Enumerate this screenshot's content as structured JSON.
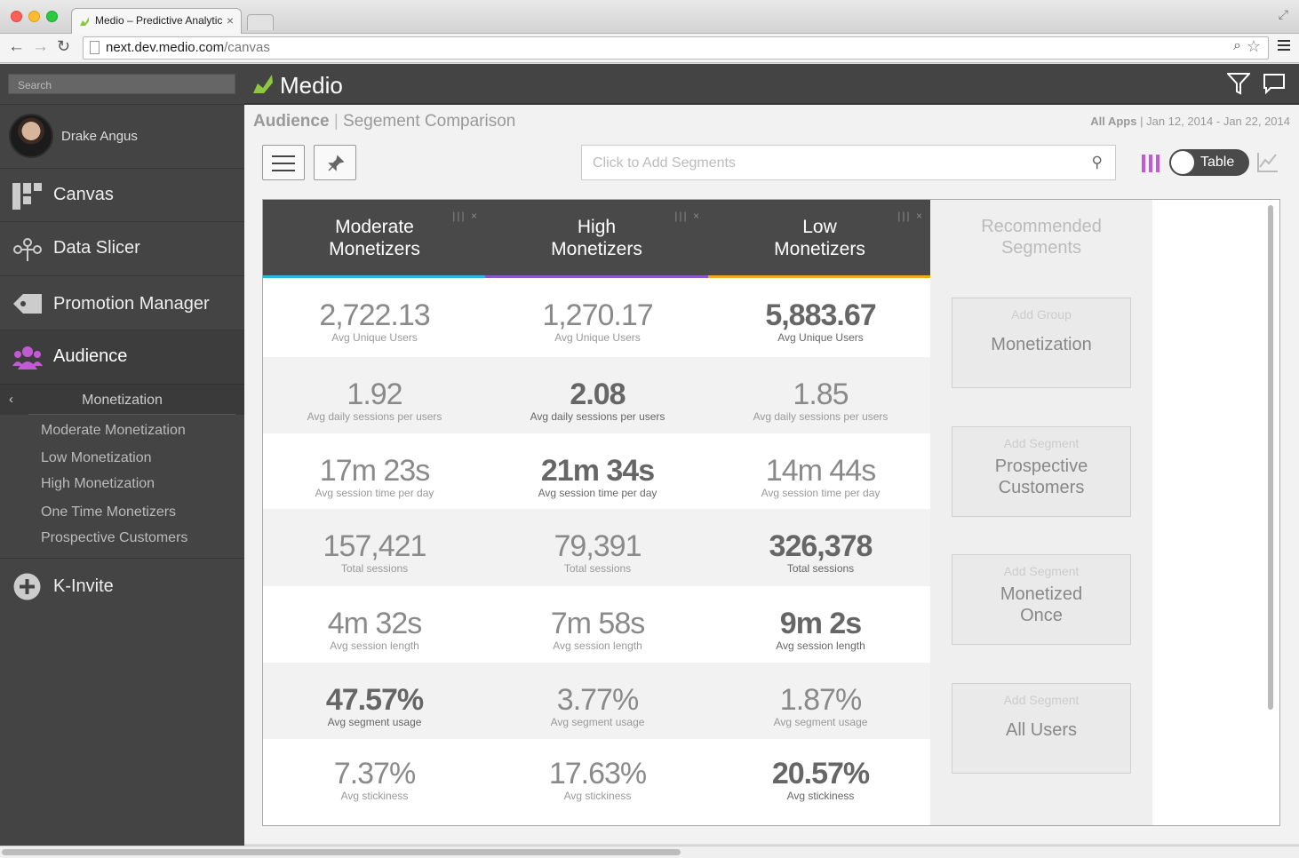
{
  "browser": {
    "tab_title": "Medio – Predictive Analytic",
    "url_host": "next.dev.medio.com",
    "url_path": "/canvas"
  },
  "sidebar": {
    "search_placeholder": "Search",
    "user_name": "Drake Angus",
    "nav": [
      {
        "label": "Canvas"
      },
      {
        "label": "Data Slicer"
      },
      {
        "label": "Promotion Manager"
      },
      {
        "label": "Audience"
      }
    ],
    "submenu_title": "Monetization",
    "submenu_items": [
      "Moderate Monetization",
      "Low Monetization",
      "High Monetization",
      "One Time Monetizers",
      "Prospective Customers"
    ],
    "k_invite": "K-Invite"
  },
  "header": {
    "brand": "Medio"
  },
  "page": {
    "section": "Audience",
    "separator": "|",
    "title": "Segement Comparison",
    "date_scope": "All Apps",
    "date_sep": "|",
    "date_range": "Jan 12, 2014 - Jan 22, 2014",
    "segment_placeholder": "Click to Add Segments",
    "view_toggle": "Table"
  },
  "columns": [
    {
      "line1": "Moderate",
      "line2": "Monetizers",
      "color": "#2bb7d9"
    },
    {
      "line1": "High",
      "line2": "Monetizers",
      "color": "#8c55c9"
    },
    {
      "line1": "Low",
      "line2": "Monetizers",
      "color": "#f0a825"
    }
  ],
  "metrics": [
    {
      "caption": "Avg Unique Users",
      "values": [
        "2,722.13",
        "1,270.17",
        "5,883.67"
      ],
      "best": 2
    },
    {
      "caption": "Avg daily sessions per users",
      "values": [
        "1.92",
        "2.08",
        "1.85"
      ],
      "best": 1
    },
    {
      "caption": "Avg session time per day",
      "values": [
        "17m 23s",
        "21m 34s",
        "14m 44s"
      ],
      "best": 1
    },
    {
      "caption": "Total sessions",
      "values": [
        "157,421",
        "79,391",
        "326,378"
      ],
      "best": 2
    },
    {
      "caption": "Avg session length",
      "values": [
        "4m 32s",
        "7m 58s",
        "9m 2s"
      ],
      "best": 2
    },
    {
      "caption": "Avg segment usage",
      "values": [
        "47.57%",
        "3.77%",
        "1.87%"
      ],
      "best": 0
    },
    {
      "caption": "Avg stickiness",
      "values": [
        "7.37%",
        "17.63%",
        "20.57%"
      ],
      "best": 2
    }
  ],
  "recommended": {
    "title_line1": "Recommended",
    "title_line2": "Segments",
    "cards": [
      {
        "add": "Add Group",
        "name": "Monetization"
      },
      {
        "add": "Add Segment",
        "name": "Prospective Customers"
      },
      {
        "add": "Add Segment",
        "name": "Monetized Once"
      },
      {
        "add": "Add Segment",
        "name": "All Users"
      }
    ]
  }
}
